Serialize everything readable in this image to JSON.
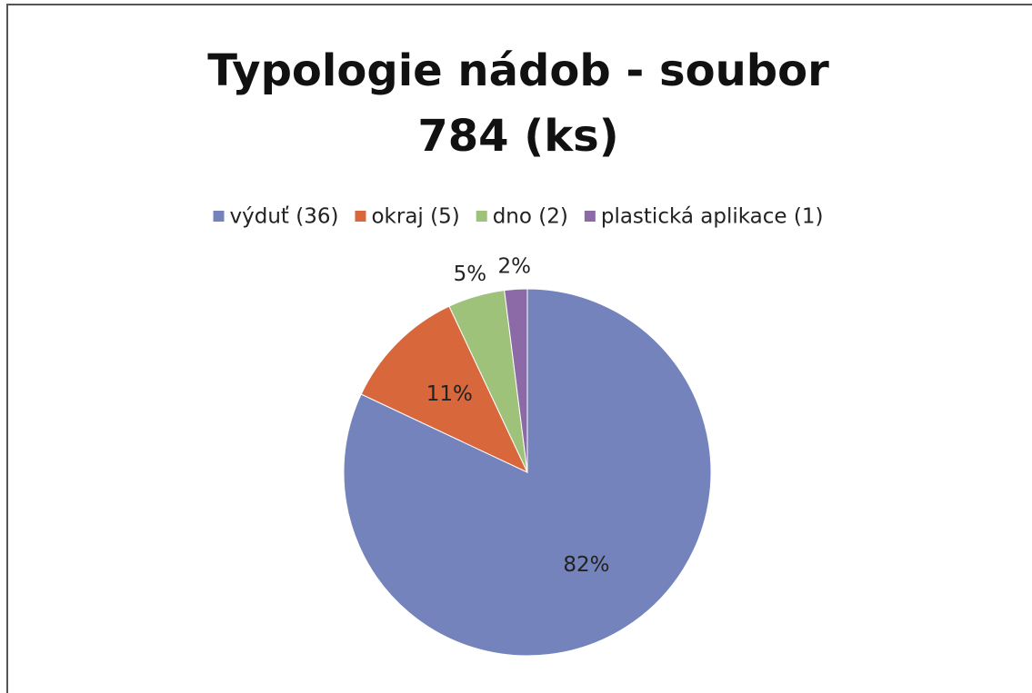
{
  "chart_data": {
    "type": "pie",
    "title": "Typologie nádob - soubor 784 (ks)",
    "categories": [
      "výduť (36)",
      "okraj (5)",
      "dno (2)",
      "plastická aplikace (1)"
    ],
    "values": [
      82,
      11,
      5,
      2
    ],
    "value_labels": [
      "82%",
      "11%",
      "5%",
      "2%"
    ],
    "colors": [
      "#7483bb",
      "#d8673b",
      "#9fc27b",
      "#8c6aa7"
    ],
    "legend": "top"
  }
}
